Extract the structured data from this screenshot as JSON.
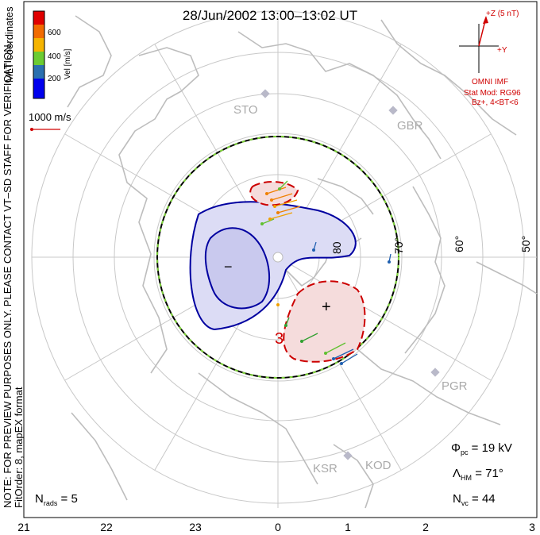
{
  "title": "28/Jun/2002 13:00–13:02 UT",
  "legend": {
    "colors": [
      "#0000ee",
      "#2a70b0",
      "#6ccc32",
      "#f5b400",
      "#f26b00",
      "#e00000"
    ],
    "tick_labels": [
      "200",
      "400",
      "600"
    ],
    "axis_label": "Vel [m/s]",
    "coordinates": "MLT coordinates"
  },
  "scale_label": "1000 m/s",
  "imf": {
    "z_label": "+Z (5 nT)",
    "y_label": "+Y",
    "source": "OMNI IMF",
    "model": "Stat Mod: RG96",
    "condition": "Bz+, 4<BT<6"
  },
  "stations": [
    {
      "name": "STO",
      "icon": "station-marker-icon"
    },
    {
      "name": "GBR",
      "icon": "station-marker-icon"
    },
    {
      "name": "PGR",
      "icon": "station-marker-icon"
    },
    {
      "name": "KSR",
      "icon": "station-marker-icon"
    },
    {
      "name": "KOD",
      "icon": "station-marker-icon"
    }
  ],
  "latitude_labels": [
    "80",
    "70°",
    "60°",
    "50°"
  ],
  "mlt_ticks": [
    "21",
    "22",
    "23",
    "0",
    "1",
    "2",
    "3"
  ],
  "contour_labels": {
    "minus": "−",
    "plus": "+",
    "three": "3"
  },
  "stats": {
    "phi_symbol": "Φ",
    "phi_sub": "pc",
    "phi_value": "= 19 kV",
    "lambda_symbol": "Λ",
    "lambda_sub": "HM",
    "lambda_value": "= 71°",
    "nvc_symbol": "N",
    "nvc_sub": "vc",
    "nvc_value": "= 44",
    "nrads_symbol": "N",
    "nrads_sub": "rads",
    "nrads_value": "= 5"
  },
  "notes": {
    "preview": "NOTE: FOR PREVIEW PURPOSES ONLY. PLEASE CONTACT VT–SD STAFF FOR VERIFICATION.",
    "fit_order": "FitOrder: 8, mapEX format"
  }
}
